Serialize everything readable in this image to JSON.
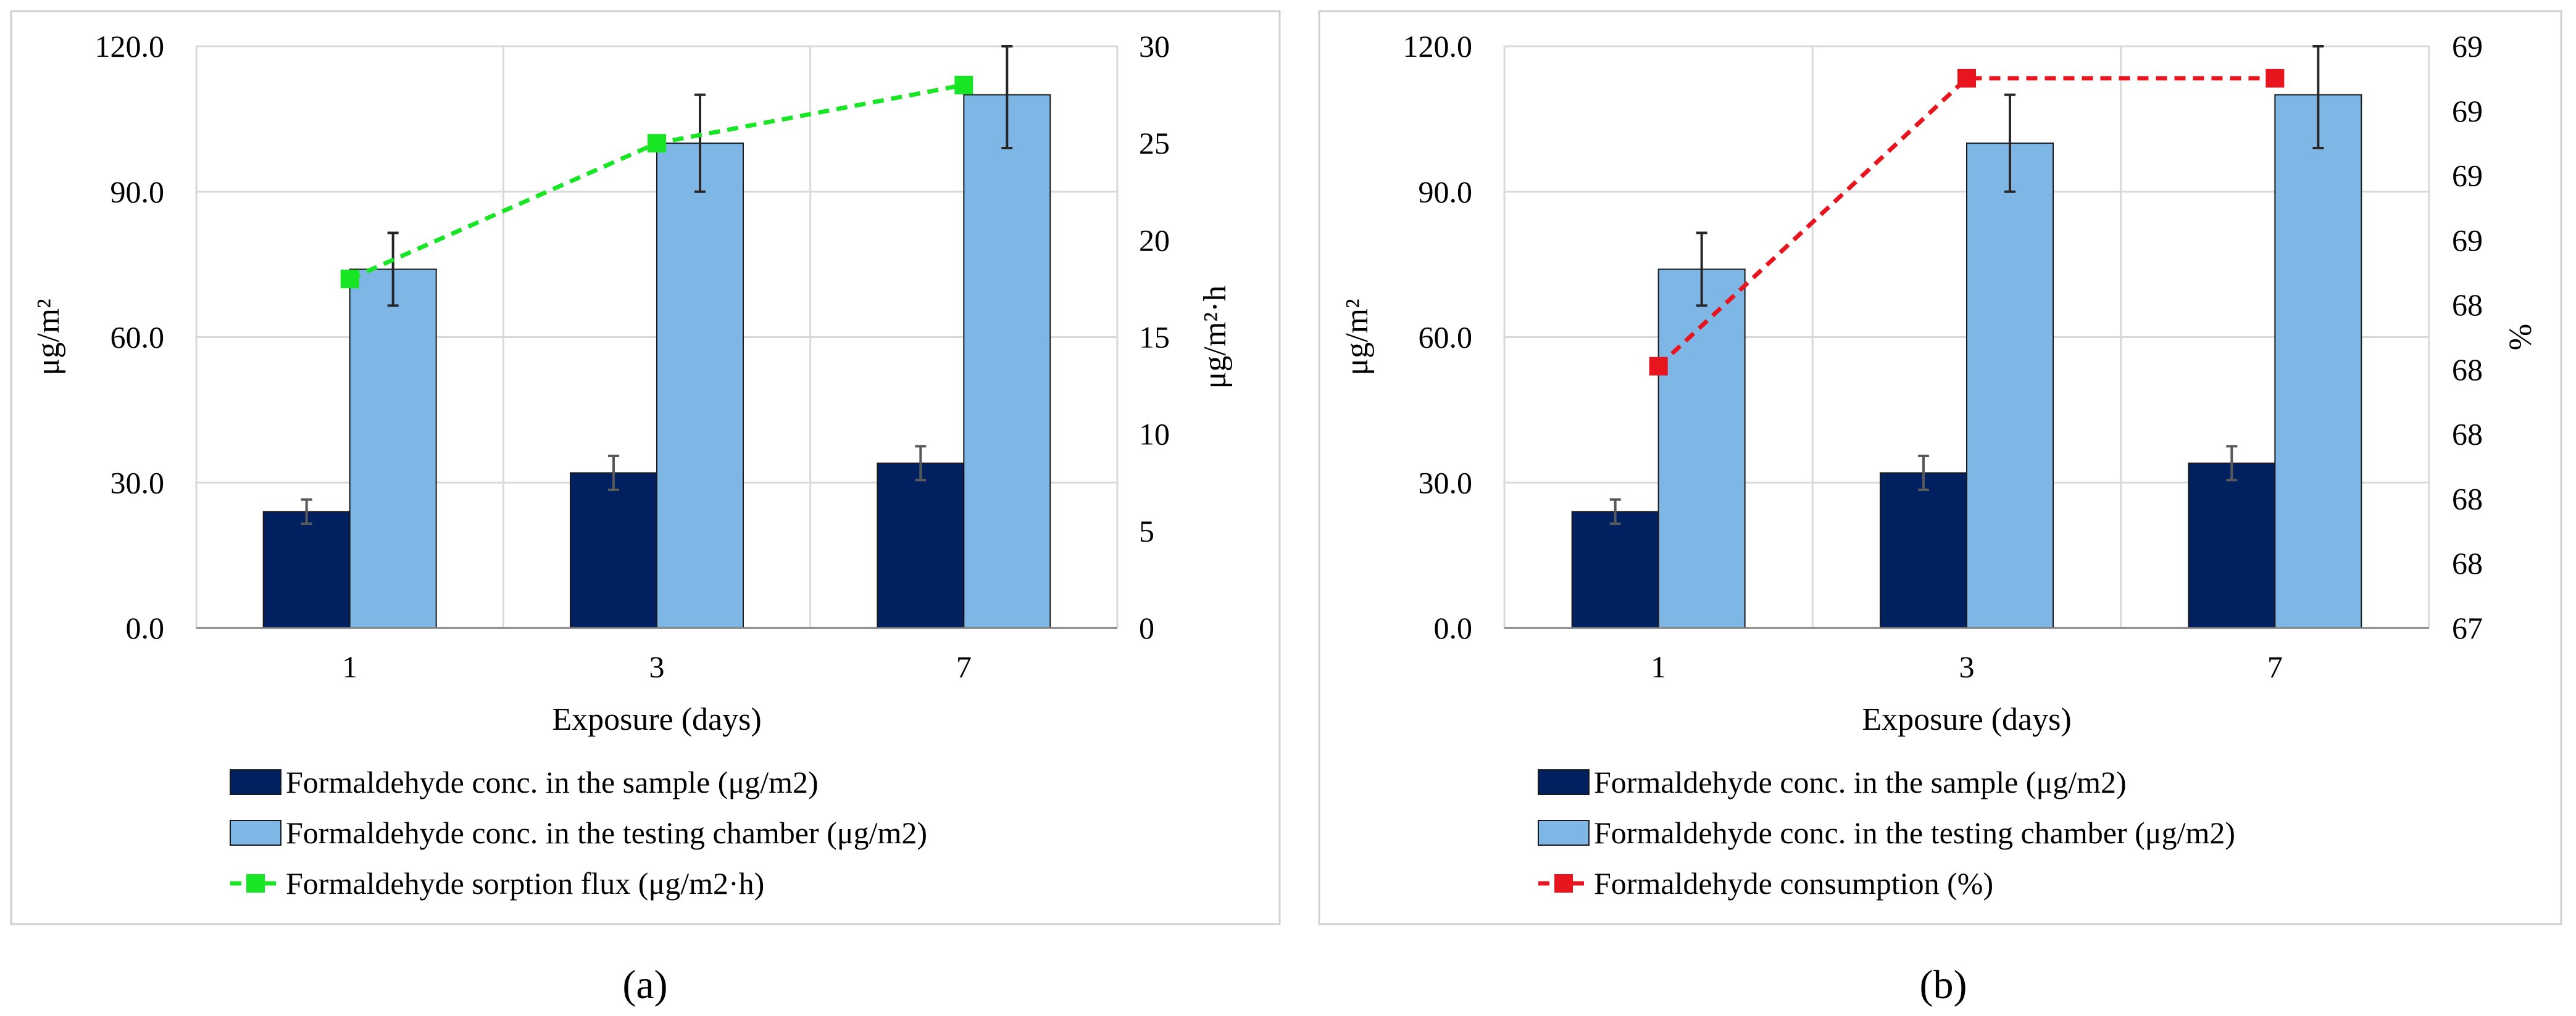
{
  "colors": {
    "sample_bar": "#002060",
    "chamber_bar": "#7EB6E6",
    "flux_line": "#18E625",
    "consumption_line": "#E8151E",
    "grid": "#D9D9D9",
    "frame": "#D0D0D0",
    "axis": "#808080",
    "error_bar_sample": "#595959",
    "error_bar_chamber": "#262626"
  },
  "chart_data": [
    {
      "type": "bar",
      "panel_caption": "(a)",
      "categories": [
        "1",
        "3",
        "7"
      ],
      "xlabel": "Exposure (days)",
      "ylabel": "μg/m²",
      "ylim": [
        0,
        120
      ],
      "yticks": [
        "0.0",
        "30.0",
        "60.0",
        "90.0",
        "120.0"
      ],
      "y2label": "μg/m²·h",
      "y2lim": [
        0,
        30
      ],
      "y2ticks": [
        "0",
        "5",
        "10",
        "15",
        "20",
        "25",
        "30"
      ],
      "grid": true,
      "legend_position": "bottom",
      "series": [
        {
          "name": "Formaldehyde conc. in the sample (μg/m2)",
          "kind": "bar",
          "axis": "left",
          "values": [
            24,
            32,
            34
          ],
          "errors": [
            2.5,
            3.5,
            3.5
          ]
        },
        {
          "name": "Formaldehyde conc. in the testing chamber (μg/m2)",
          "kind": "bar",
          "axis": "left",
          "values": [
            74,
            100,
            110
          ],
          "errors": [
            7.5,
            10,
            11
          ]
        },
        {
          "name": "Formaldehyde sorption flux (μg/m2·h)",
          "kind": "line",
          "axis": "right",
          "values": [
            18,
            25,
            28
          ]
        }
      ]
    },
    {
      "type": "bar",
      "panel_caption": "(b)",
      "categories": [
        "1",
        "3",
        "7"
      ],
      "xlabel": "Exposure (days)",
      "ylabel": "μg/m²",
      "ylim": [
        0,
        120
      ],
      "yticks": [
        "0.0",
        "30.0",
        "60.0",
        "90.0",
        "120.0"
      ],
      "y2label": "%",
      "y2lim": [
        67,
        69
      ],
      "y2ticks": [
        "67",
        "68",
        "68",
        "68",
        "68",
        "68",
        "69",
        "69",
        "69",
        "69"
      ],
      "grid": true,
      "legend_position": "bottom",
      "series": [
        {
          "name": "Formaldehyde conc. in the sample (μg/m2)",
          "kind": "bar",
          "axis": "left",
          "values": [
            24,
            32,
            34
          ],
          "errors": [
            2.5,
            3.5,
            3.5
          ]
        },
        {
          "name": "Formaldehyde conc. in the testing chamber (μg/m2)",
          "kind": "bar",
          "axis": "left",
          "values": [
            74,
            100,
            110
          ],
          "errors": [
            7.5,
            10,
            11
          ]
        },
        {
          "name": "Formaldehyde consumption (%)",
          "kind": "line",
          "axis": "right",
          "values": [
            67.9,
            68.89,
            68.89
          ]
        }
      ]
    }
  ]
}
